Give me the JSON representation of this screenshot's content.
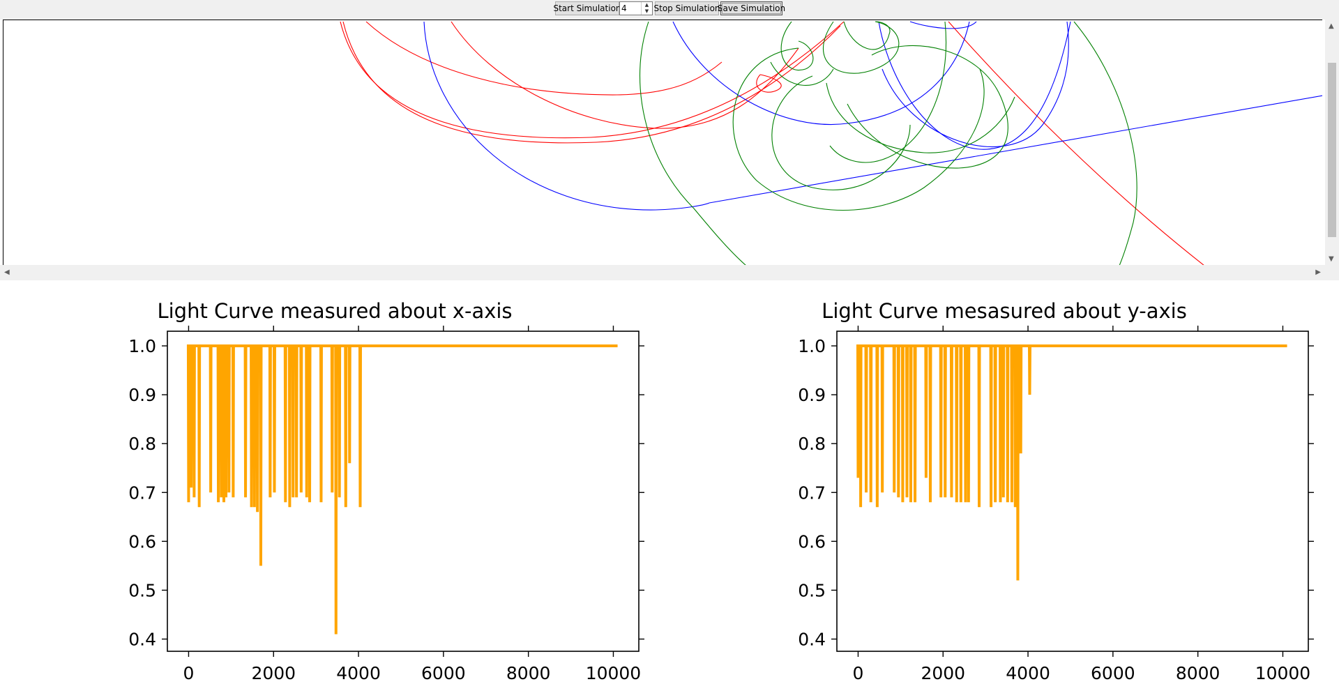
{
  "toolbar": {
    "start_label": "Start Simulation",
    "spin_value": "4",
    "stop_label": "Stop Simulation",
    "save_label": "Save Simulation"
  },
  "colors": {
    "orbit_red": "#ff0000",
    "orbit_blue": "#0000ff",
    "orbit_green": "#008000",
    "curve": "#ffa500"
  },
  "icons": {
    "spin_up": "up-arrow-icon",
    "spin_down": "down-arrow-icon",
    "scroll_up": "up-arrow-icon",
    "scroll_down": "down-arrow-icon",
    "scroll_left": "left-arrow-icon",
    "scroll_right": "right-arrow-icon"
  },
  "chart_data": [
    {
      "type": "line",
      "title": "Light Curve measured about x-axis",
      "xlabel": "",
      "ylabel": "",
      "xlim": [
        -500,
        10600
      ],
      "ylim": [
        0.375,
        1.03
      ],
      "xticks": [
        0,
        2000,
        4000,
        6000,
        8000,
        10000
      ],
      "yticks": [
        0.4,
        0.5,
        0.6,
        0.7,
        0.8,
        0.9,
        1.0
      ],
      "xtick_labels": [
        "0",
        "2000",
        "4000",
        "6000",
        "8000",
        "10000"
      ],
      "ytick_labels": [
        "0.4",
        "0.5",
        "0.6",
        "0.7",
        "0.8",
        "0.9",
        "1.0"
      ],
      "grid": false,
      "x_end": 10100,
      "baseline": 1.0,
      "dips": [
        [
          0,
          0.68
        ],
        [
          60,
          0.71
        ],
        [
          130,
          0.69
        ],
        [
          250,
          0.67
        ],
        [
          520,
          0.7
        ],
        [
          700,
          0.68
        ],
        [
          770,
          0.69
        ],
        [
          830,
          0.68
        ],
        [
          880,
          0.69
        ],
        [
          950,
          0.7
        ],
        [
          1050,
          0.69
        ],
        [
          1340,
          0.69
        ],
        [
          1480,
          0.67
        ],
        [
          1550,
          0.67
        ],
        [
          1620,
          0.66
        ],
        [
          1700,
          0.55
        ],
        [
          1920,
          0.69
        ],
        [
          2020,
          0.7
        ],
        [
          2280,
          0.68
        ],
        [
          2380,
          0.67
        ],
        [
          2460,
          0.69
        ],
        [
          2540,
          0.69
        ],
        [
          2650,
          0.7
        ],
        [
          2780,
          0.69
        ],
        [
          2850,
          0.68
        ],
        [
          3120,
          0.68
        ],
        [
          3380,
          0.7
        ],
        [
          3470,
          0.41
        ],
        [
          3550,
          0.69
        ],
        [
          3700,
          0.67
        ],
        [
          3790,
          0.76
        ],
        [
          4040,
          0.67
        ]
      ]
    },
    {
      "type": "line",
      "title": "Light Curve mesasured about y-axis",
      "xlabel": "",
      "ylabel": "",
      "xlim": [
        -500,
        10600
      ],
      "ylim": [
        0.375,
        1.03
      ],
      "xticks": [
        0,
        2000,
        4000,
        6000,
        8000,
        10000
      ],
      "yticks": [
        0.4,
        0.5,
        0.6,
        0.7,
        0.8,
        0.9,
        1.0
      ],
      "xtick_labels": [
        "0",
        "2000",
        "4000",
        "6000",
        "8000",
        "10000"
      ],
      "ytick_labels": [
        "0.4",
        "0.5",
        "0.6",
        "0.7",
        "0.8",
        "0.9",
        "1.0"
      ],
      "grid": false,
      "x_end": 10100,
      "baseline": 1.0,
      "dips": [
        [
          0,
          0.73
        ],
        [
          60,
          0.67
        ],
        [
          190,
          0.7
        ],
        [
          300,
          0.68
        ],
        [
          450,
          0.67
        ],
        [
          570,
          0.7
        ],
        [
          850,
          0.7
        ],
        [
          950,
          0.69
        ],
        [
          1050,
          0.68
        ],
        [
          1150,
          0.69
        ],
        [
          1240,
          0.68
        ],
        [
          1340,
          0.68
        ],
        [
          1600,
          0.73
        ],
        [
          1700,
          0.68
        ],
        [
          1950,
          0.69
        ],
        [
          2050,
          0.69
        ],
        [
          2200,
          0.69
        ],
        [
          2320,
          0.68
        ],
        [
          2420,
          0.68
        ],
        [
          2530,
          0.68
        ],
        [
          2600,
          0.68
        ],
        [
          2850,
          0.67
        ],
        [
          3130,
          0.67
        ],
        [
          3230,
          0.68
        ],
        [
          3350,
          0.68
        ],
        [
          3420,
          0.69
        ],
        [
          3520,
          0.68
        ],
        [
          3620,
          0.68
        ],
        [
          3700,
          0.67
        ],
        [
          3760,
          0.52
        ],
        [
          3830,
          0.78
        ],
        [
          4040,
          0.9
        ]
      ]
    }
  ]
}
